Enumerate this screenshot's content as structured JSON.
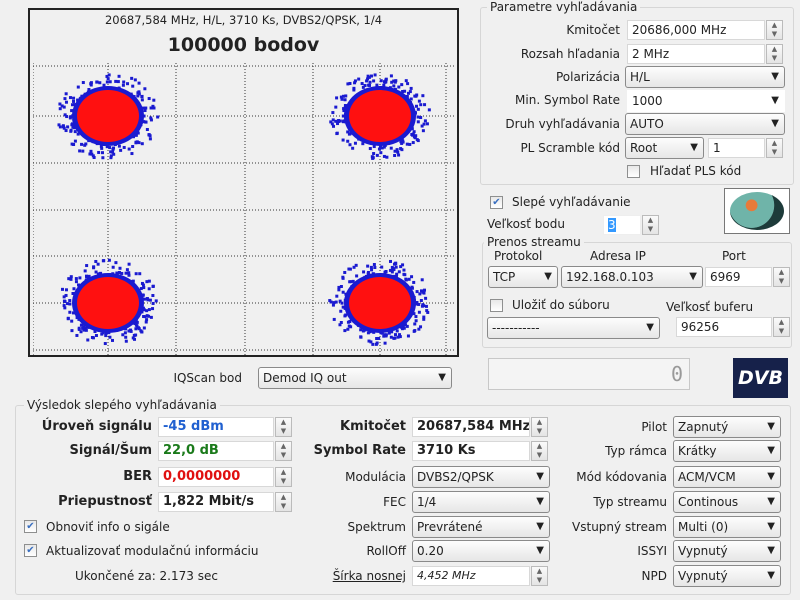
{
  "constellation": {
    "info": "20687,584 MHz, H/L, 3710 Ks, DVBS2/QPSK, 1/4",
    "points_title": "100000 bodov",
    "colors": {
      "core": "#ff1010",
      "edge": "#1a1ad0"
    },
    "iqscan_label": "IQScan bod",
    "iqscan_value": "Demod IQ out"
  },
  "search_params": {
    "title": "Parametre vyhľadávania",
    "frequency_label": "Kmitočet",
    "frequency_value": "20686,000 MHz",
    "range_label": "Rozsah hľadania",
    "range_value": "2 MHz",
    "polarization_label": "Polarizácia",
    "polarization_value": "H/L",
    "min_sr_label": "Min. Symbol Rate",
    "min_sr_value": "1000",
    "search_type_label": "Druh vyhľadávania",
    "search_type_value": "AUTO",
    "pl_scramble_label": "PL Scramble kód",
    "pl_scramble_mode": "Root",
    "pl_scramble_value": "1",
    "find_pls_label": "Hľadať PLS kód",
    "find_pls_checked": false
  },
  "blind_search": {
    "label": "Slepé vyhľadávanie",
    "checked": true,
    "point_size_label": "Veľkosť bodu",
    "point_size_value": "3"
  },
  "stream": {
    "title": "Prenos streamu",
    "protocol_label": "Protokol",
    "protocol_value": "TCP",
    "ip_label": "Adresa IP",
    "ip_value": "192.168.0.103",
    "port_label": "Port",
    "port_value": "6969",
    "save_label": "Uložiť do súboru",
    "save_checked": false,
    "file_value": "-----------",
    "buffer_label": "Veľkosť buferu",
    "buffer_value": "96256",
    "counter": "0"
  },
  "dvb_logo": "DVB",
  "results": {
    "title": "Výsledok slepého vyhľadávania",
    "level_label": "Úroveň signálu",
    "level_value": "-45 dBm",
    "snr_label": "Signál/Šum",
    "snr_value": "22,0 dB",
    "ber_label": "BER",
    "ber_value": "0,0000000",
    "throughput_label": "Priepustnosť",
    "throughput_value": "1,822 Mbit/s",
    "refresh_info_label": "Obnoviť info o sigále",
    "refresh_info_checked": true,
    "update_mod_label": "Aktualizovať modulačnú informáciu",
    "update_mod_checked": true,
    "finished": "Ukončené za: 2.173 sec",
    "freq_label": "Kmitočet",
    "freq_value": "20687,584 MHz",
    "sr_label": "Symbol Rate",
    "sr_value": "3710 Ks",
    "mod_label": "Modulácia",
    "mod_value": "DVBS2/QPSK",
    "fec_label": "FEC",
    "fec_value": "1/4",
    "spectrum_label": "Spektrum",
    "spectrum_value": "Prevrátené",
    "rolloff_label": "RollOff",
    "rolloff_value": "0.20",
    "bw_label": "Šírka nosnej",
    "bw_value": "4,452 MHz",
    "pilot_label": "Pilot",
    "pilot_value": "Zapnutý",
    "frame_label": "Typ rámca",
    "frame_value": "Krátky",
    "coding_label": "Mód kódovania",
    "coding_value": "ACM/VCM",
    "stream_type_label": "Typ streamu",
    "stream_type_value": "Continous",
    "input_stream_label": "Vstupný stream",
    "input_stream_value": "Multi (0)",
    "issyi_label": "ISSYI",
    "issyi_value": "Vypnutý",
    "npd_label": "NPD",
    "npd_value": "Vypnutý",
    "colors": {
      "level": "#2060d0",
      "snr": "#1a7a1a",
      "ber": "#e01010"
    }
  }
}
